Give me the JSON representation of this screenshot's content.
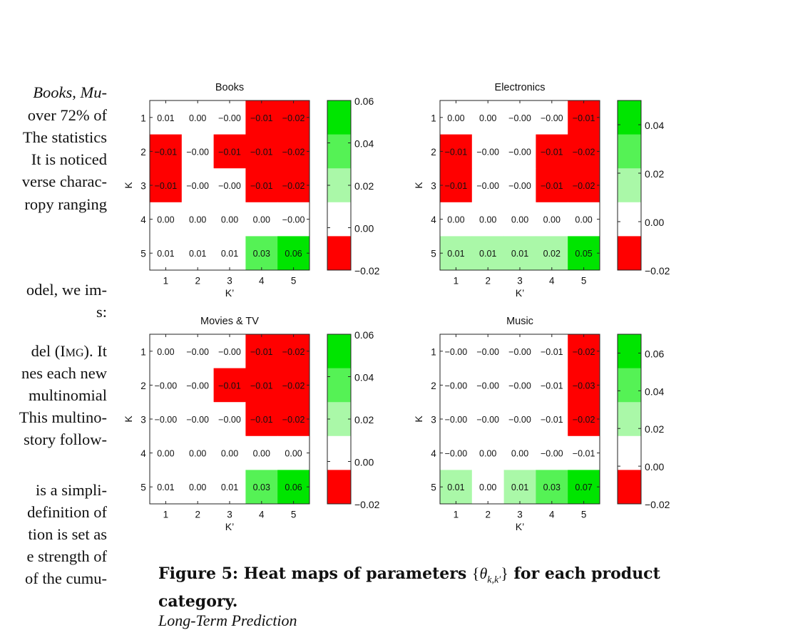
{
  "left_column": [
    {
      "text": "Books, Mu-",
      "italic": true
    },
    {
      "text": "over 72% of"
    },
    {
      "text": "The statistics"
    },
    {
      "text": "It is noticed"
    },
    {
      "text": "verse charac-"
    },
    {
      "text": "ropy ranging"
    },
    {
      "text": ""
    },
    {
      "text": ""
    },
    {
      "text": "odel, we im-"
    },
    {
      "text": "s:"
    },
    {
      "text": "del (Img). It"
    },
    {
      "text": "nes each new"
    },
    {
      "text": "multinomial"
    },
    {
      "text": "This multino-"
    },
    {
      "text": "story follow-"
    },
    {
      "text": ""
    },
    {
      "text": "is a simpli-"
    },
    {
      "text": "definition of"
    },
    {
      "text": "tion is set as"
    },
    {
      "text": "e strength of"
    },
    {
      "text": "of the cumu-"
    }
  ],
  "colors": {
    "red": "#ff0000",
    "white": "#ffffff",
    "light_green": "#aaf8a8",
    "mid_green": "#55f255",
    "green": "#00e500"
  },
  "chart_data": [
    {
      "type": "heatmap",
      "title": "Books",
      "xlabel": "K’",
      "ylabel": "K",
      "x_ticks": [
        "1",
        "2",
        "3",
        "4",
        "5"
      ],
      "y_ticks": [
        "1",
        "2",
        "3",
        "4",
        "5"
      ],
      "labels": [
        [
          "0.01",
          "0.00",
          "−0.00",
          "−0.01",
          "−0.02"
        ],
        [
          "−0.01",
          "−0.00",
          "−0.01",
          "−0.01",
          "−0.02"
        ],
        [
          "−0.01",
          "−0.00",
          "−0.00",
          "−0.01",
          "−0.02"
        ],
        [
          "0.00",
          "0.00",
          "0.00",
          "0.00",
          "−0.00"
        ],
        [
          "0.01",
          "0.01",
          "0.01",
          "0.03",
          "0.06"
        ]
      ],
      "cell_colors": [
        [
          "white",
          "white",
          "white",
          "red",
          "red"
        ],
        [
          "red",
          "white",
          "red",
          "red",
          "red"
        ],
        [
          "red",
          "white",
          "white",
          "red",
          "red"
        ],
        [
          "white",
          "white",
          "white",
          "white",
          "white"
        ],
        [
          "white",
          "white",
          "white",
          "mid_green",
          "green"
        ]
      ],
      "colorbar": {
        "levels": [
          "green",
          "mid_green",
          "light_green",
          "white",
          "red"
        ],
        "ticks": [
          "0.06",
          "0.04",
          "0.02",
          "0.00",
          "−0.02"
        ],
        "range": [
          -0.02,
          0.06
        ]
      }
    },
    {
      "type": "heatmap",
      "title": "Electronics",
      "xlabel": "K’",
      "ylabel": "K",
      "x_ticks": [
        "1",
        "2",
        "3",
        "4",
        "5"
      ],
      "y_ticks": [
        "1",
        "2",
        "3",
        "4",
        "5"
      ],
      "labels": [
        [
          "0.00",
          "0.00",
          "−0.00",
          "−0.00",
          "−0.01"
        ],
        [
          "−0.01",
          "−0.00",
          "−0.00",
          "−0.01",
          "−0.02"
        ],
        [
          "−0.01",
          "−0.00",
          "−0.00",
          "−0.01",
          "−0.02"
        ],
        [
          "0.00",
          "0.00",
          "0.00",
          "0.00",
          "0.00"
        ],
        [
          "0.01",
          "0.01",
          "0.01",
          "0.02",
          "0.05"
        ]
      ],
      "cell_colors": [
        [
          "white",
          "white",
          "white",
          "white",
          "red"
        ],
        [
          "red",
          "white",
          "white",
          "red",
          "red"
        ],
        [
          "red",
          "white",
          "white",
          "red",
          "red"
        ],
        [
          "white",
          "white",
          "white",
          "white",
          "white"
        ],
        [
          "light_green",
          "light_green",
          "light_green",
          "light_green",
          "green"
        ]
      ],
      "colorbar": {
        "levels": [
          "green",
          "mid_green",
          "light_green",
          "white",
          "red"
        ],
        "ticks": [
          "0.04",
          "0.02",
          "0.00",
          "−0.02"
        ],
        "range": [
          -0.02,
          0.05
        ]
      }
    },
    {
      "type": "heatmap",
      "title": "Movies & TV",
      "xlabel": "K’",
      "ylabel": "K",
      "x_ticks": [
        "1",
        "2",
        "3",
        "4",
        "5"
      ],
      "y_ticks": [
        "1",
        "2",
        "3",
        "4",
        "5"
      ],
      "labels": [
        [
          "0.00",
          "−0.00",
          "−0.00",
          "−0.01",
          "−0.02"
        ],
        [
          "−0.00",
          "−0.00",
          "−0.01",
          "−0.01",
          "−0.02"
        ],
        [
          "−0.00",
          "−0.00",
          "−0.00",
          "−0.01",
          "−0.02"
        ],
        [
          "0.00",
          "0.00",
          "0.00",
          "0.00",
          "0.00"
        ],
        [
          "0.01",
          "0.00",
          "0.01",
          "0.03",
          "0.06"
        ]
      ],
      "cell_colors": [
        [
          "white",
          "white",
          "white",
          "red",
          "red"
        ],
        [
          "white",
          "white",
          "red",
          "red",
          "red"
        ],
        [
          "white",
          "white",
          "white",
          "red",
          "red"
        ],
        [
          "white",
          "white",
          "white",
          "white",
          "white"
        ],
        [
          "white",
          "white",
          "white",
          "mid_green",
          "green"
        ]
      ],
      "colorbar": {
        "levels": [
          "green",
          "mid_green",
          "light_green",
          "white",
          "red"
        ],
        "ticks": [
          "0.06",
          "0.04",
          "0.02",
          "0.00",
          "−0.02"
        ],
        "range": [
          -0.02,
          0.06
        ]
      }
    },
    {
      "type": "heatmap",
      "title": "Music",
      "xlabel": "K’",
      "ylabel": "K",
      "x_ticks": [
        "1",
        "2",
        "3",
        "4",
        "5"
      ],
      "y_ticks": [
        "1",
        "2",
        "3",
        "4",
        "5"
      ],
      "labels": [
        [
          "−0.00",
          "−0.00",
          "−0.00",
          "−0.01",
          "−0.02"
        ],
        [
          "−0.00",
          "−0.00",
          "−0.00",
          "−0.01",
          "−0.03"
        ],
        [
          "−0.00",
          "−0.00",
          "−0.00",
          "−0.01",
          "−0.02"
        ],
        [
          "−0.00",
          "0.00",
          "0.00",
          "−0.00",
          "−0.01"
        ],
        [
          "0.01",
          "0.00",
          "0.01",
          "0.03",
          "0.07"
        ]
      ],
      "cell_colors": [
        [
          "white",
          "white",
          "white",
          "white",
          "red"
        ],
        [
          "white",
          "white",
          "white",
          "white",
          "red"
        ],
        [
          "white",
          "white",
          "white",
          "white",
          "red"
        ],
        [
          "white",
          "white",
          "white",
          "white",
          "white"
        ],
        [
          "light_green",
          "white",
          "light_green",
          "mid_green",
          "green"
        ]
      ],
      "colorbar": {
        "levels": [
          "green",
          "mid_green",
          "light_green",
          "white",
          "red"
        ],
        "ticks": [
          "0.06",
          "0.04",
          "0.02",
          "0.00",
          "−0.02"
        ],
        "range": [
          -0.02,
          0.07
        ]
      }
    }
  ],
  "caption": {
    "prefix": "Figure 5:  Heat maps of parameters ",
    "math": "{θk,k′}",
    "suffix": " for each product category."
  },
  "below_text": "Long-Term Prediction"
}
